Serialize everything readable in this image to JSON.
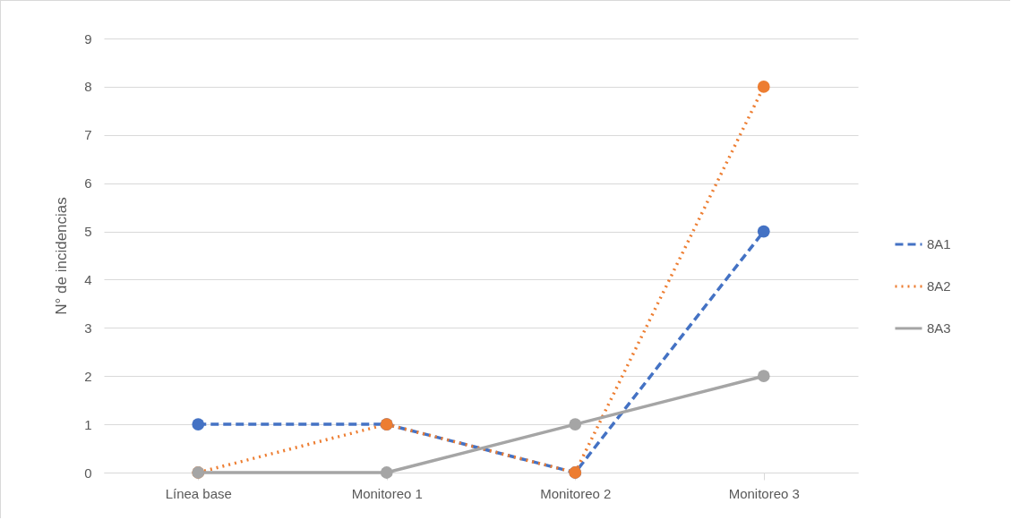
{
  "chart_data": {
    "type": "line",
    "ylabel": "N° de incidencias",
    "categories": [
      "Línea base",
      "Monitoreo 1",
      "Monitoreo 2",
      "Monitoreo 3"
    ],
    "series": [
      {
        "name": "8A1",
        "color": "#4472c4",
        "line_style": "dashed",
        "values": [
          1,
          1,
          0,
          5
        ]
      },
      {
        "name": "8A2",
        "color": "#ed7d31",
        "line_style": "dotted",
        "values": [
          0,
          1,
          0,
          8
        ]
      },
      {
        "name": "8A3",
        "color": "#a5a5a5",
        "line_style": "solid",
        "values": [
          0,
          0,
          1,
          2
        ]
      }
    ],
    "ylim": [
      0,
      9
    ],
    "yticks": [
      0,
      1,
      2,
      3,
      4,
      5,
      6,
      7,
      8,
      9
    ],
    "grid": "y",
    "legend": "right",
    "marker": "circle"
  }
}
